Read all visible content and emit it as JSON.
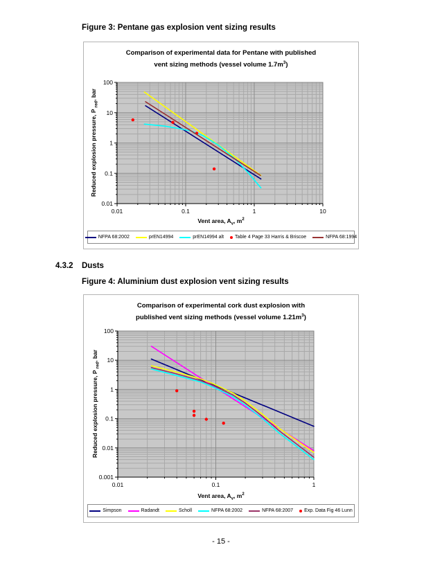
{
  "palette": {
    "plot_bg": "#c8c8c8",
    "grid_minor": "#a9a9a9",
    "grid_major": "#8c8c8c",
    "axis": "#000000",
    "chart_border": "#808080"
  },
  "figure3": {
    "heading": "Figure 3: Pentane gas explosion vent sizing results"
  },
  "section": {
    "number": "4.3.2",
    "title": "Dusts"
  },
  "figure4": {
    "heading": "Figure 4: Aluminium dust explosion vent sizing results"
  },
  "page": {
    "number_label": "- 15 -"
  },
  "chart_data": [
    {
      "type": "line",
      "title_line1": "Comparison of experimental data for Pentane with published",
      "title_line2_pre": "vent sizing methods (vessel volume 1.7m",
      "title_sup": "3",
      "title_line2_post": ")",
      "xlabel": {
        "pre": "Vent area, A",
        "sub": "v",
        "post": ", m",
        "sup": "2"
      },
      "ylabel": {
        "pre": "Reduced explosion pressure, P ",
        "sub": "red",
        "post": ", bar"
      },
      "xlim": [
        0.01,
        10
      ],
      "ylim": [
        0.01,
        100
      ],
      "x_ticks": [
        "0.01",
        "0.1",
        "1",
        "10"
      ],
      "y_ticks": [
        "100",
        "10",
        "1",
        "0.1",
        "0.01"
      ],
      "grid": "log-log with minor gridlines",
      "legend_position": "bottom",
      "series": [
        {
          "name": "NFPA 68:2002",
          "type": "line",
          "color": "#000080",
          "points": [
            [
              0.026,
              17
            ],
            [
              1.25,
              0.065
            ]
          ]
        },
        {
          "name": "prEN14994",
          "type": "line",
          "color": "#ffff00",
          "points": [
            [
              0.025,
              48
            ],
            [
              1.25,
              0.085
            ]
          ]
        },
        {
          "name": "prEN14994 alt",
          "type": "line",
          "color": "#00ffff",
          "points": [
            [
              0.025,
              4.2
            ],
            [
              0.05,
              3.6
            ],
            [
              0.08,
              3.0
            ],
            [
              0.12,
              2.5
            ],
            [
              0.18,
              1.75
            ],
            [
              0.3,
              0.85
            ],
            [
              0.5,
              0.33
            ],
            [
              0.8,
              0.11
            ],
            [
              1.25,
              0.033
            ]
          ]
        },
        {
          "name": "Table 4 Page 33 Harris & Briscoe",
          "type": "scatter",
          "color": "#ff0000",
          "points": [
            [
              0.017,
              5.8
            ],
            [
              0.065,
              4.8
            ],
            [
              0.145,
              2.1
            ],
            [
              0.26,
              0.14
            ]
          ]
        },
        {
          "name": "NFPA 68:1994",
          "type": "line",
          "color": "#993333",
          "points": [
            [
              0.026,
              23
            ],
            [
              1.23,
              0.085
            ]
          ]
        }
      ]
    },
    {
      "type": "line",
      "title_line1": "Comparison of experimental cork dust explosion with",
      "title_line2_pre": "published vent sizing methods (vessel volume 1.21m",
      "title_sup": "3",
      "title_line2_post": ")",
      "xlabel": {
        "pre": "Vent area, A",
        "sub": "v",
        "post": ", m",
        "sup": "2"
      },
      "ylabel": {
        "pre": "Reduced explosion pressure, P ",
        "sub": "red",
        "post": ", bar"
      },
      "xlim": [
        0.01,
        1
      ],
      "ylim": [
        0.001,
        100
      ],
      "x_ticks": [
        "0.01",
        "0.1",
        "1"
      ],
      "y_ticks": [
        "100",
        "10",
        "1",
        "0.1",
        "0.01",
        "0.001"
      ],
      "grid": "log-log with minor gridlines",
      "legend_position": "bottom",
      "series": [
        {
          "name": "Simpson",
          "type": "line",
          "color": "#000080",
          "points": [
            [
              0.022,
              11
            ],
            [
              1,
              0.055
            ]
          ]
        },
        {
          "name": "Radandt",
          "type": "line",
          "color": "#ff00ff",
          "points": [
            [
              0.022,
              30
            ],
            [
              1,
              0.008
            ]
          ]
        },
        {
          "name": "Scholl",
          "type": "line",
          "color": "#ffff00",
          "points": [
            [
              0.022,
              6.5
            ],
            [
              0.04,
              3.9
            ],
            [
              0.07,
              2.3
            ],
            [
              0.095,
              1.55
            ],
            [
              0.15,
              0.75
            ],
            [
              0.2,
              0.4
            ],
            [
              0.3,
              0.14
            ],
            [
              0.45,
              0.045
            ],
            [
              0.7,
              0.016
            ],
            [
              1,
              0.007
            ]
          ]
        },
        {
          "name": "NFPA 68:2002",
          "type": "line",
          "color": "#00ffff",
          "points": [
            [
              0.022,
              5.0
            ],
            [
              0.04,
              3.0
            ],
            [
              0.07,
              1.8
            ],
            [
              0.095,
              1.2
            ],
            [
              0.15,
              0.56
            ],
            [
              0.2,
              0.29
            ],
            [
              0.3,
              0.1
            ],
            [
              0.45,
              0.031
            ],
            [
              0.7,
              0.01
            ],
            [
              1,
              0.004
            ]
          ]
        },
        {
          "name": "NFPA 68:2007",
          "type": "line",
          "color": "#993366",
          "points": [
            [
              0.022,
              5.6
            ],
            [
              0.04,
              3.4
            ],
            [
              0.07,
              2.0
            ],
            [
              0.095,
              1.35
            ],
            [
              0.15,
              0.64
            ],
            [
              0.2,
              0.34
            ],
            [
              0.3,
              0.12
            ],
            [
              0.45,
              0.037
            ],
            [
              0.7,
              0.012
            ],
            [
              1,
              0.0048
            ]
          ]
        },
        {
          "name": "Exp. Data Fig 46 Lunn",
          "type": "scatter",
          "color": "#ff0000",
          "points": [
            [
              0.04,
              0.9
            ],
            [
              0.06,
              0.18
            ],
            [
              0.06,
              0.13
            ],
            [
              0.08,
              0.095
            ],
            [
              0.12,
              0.07
            ]
          ]
        }
      ]
    }
  ]
}
